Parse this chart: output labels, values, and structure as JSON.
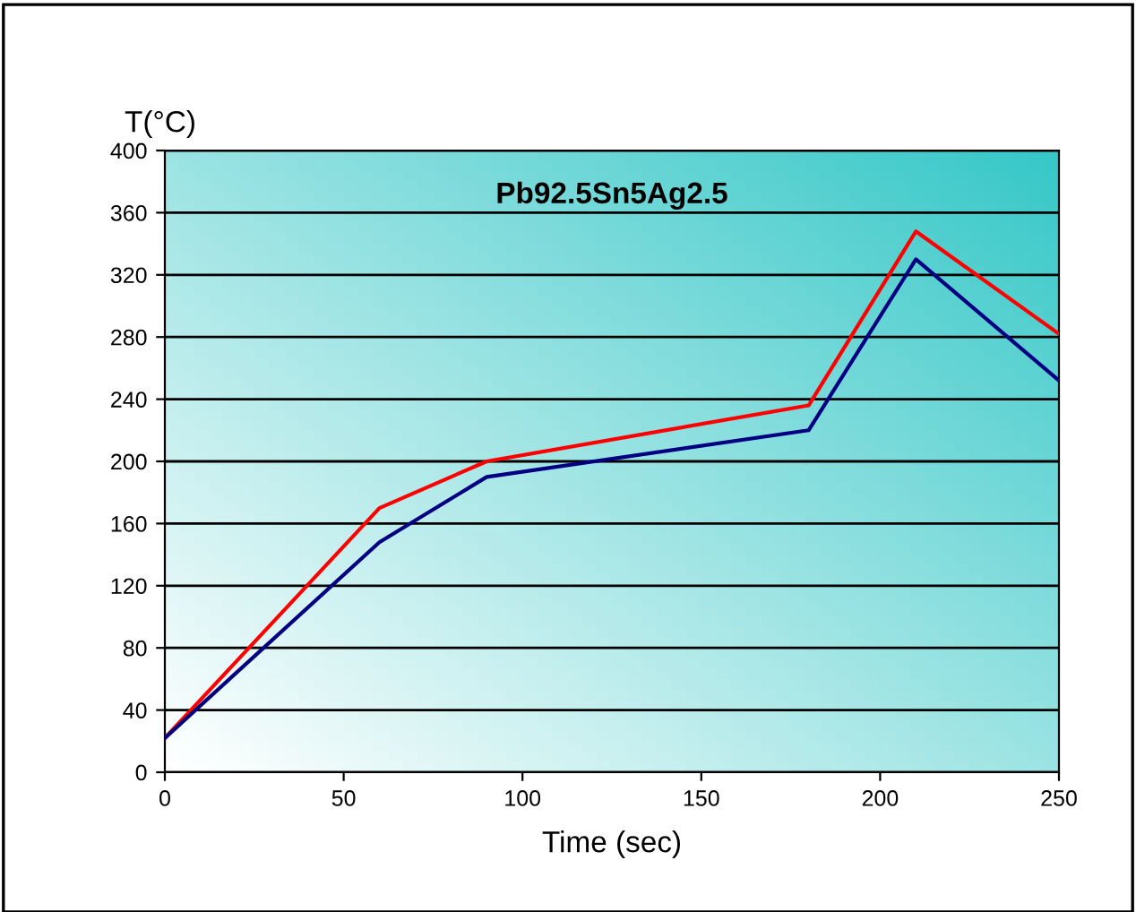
{
  "chart_data": {
    "type": "line",
    "title": "Pb92.5Sn5Ag2.5",
    "xlabel": "Time (sec)",
    "ylabel": "T(°C)",
    "series": [
      {
        "color": "#ff0000",
        "x": [
          0,
          60,
          90,
          180,
          210,
          250
        ],
        "values": [
          22,
          170,
          200,
          236,
          348,
          282
        ]
      },
      {
        "color": "#000080",
        "x": [
          0,
          60,
          90,
          180,
          210,
          250
        ],
        "values": [
          22,
          148,
          190,
          220,
          330,
          252
        ]
      }
    ],
    "xlim": [
      0,
      250
    ],
    "xticks": [
      0,
      50,
      100,
      150,
      200,
      250
    ],
    "ylim": [
      0,
      400
    ],
    "yticks": [
      0,
      40,
      80,
      120,
      160,
      200,
      240,
      280,
      320,
      360,
      400
    ],
    "grid": "y",
    "legend": false,
    "marker": "none",
    "line_style": "solid"
  }
}
